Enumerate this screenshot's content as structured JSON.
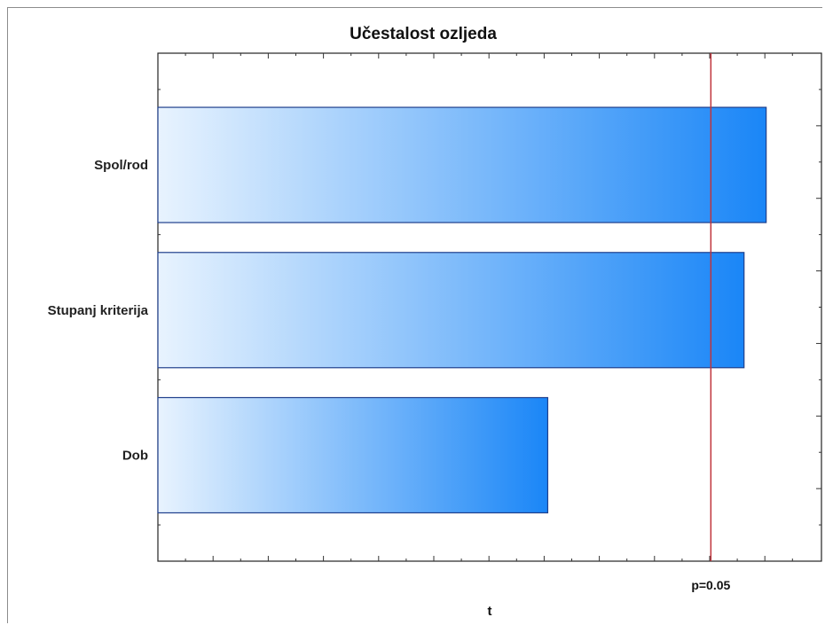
{
  "chart_data": {
    "type": "bar",
    "orientation": "horizontal",
    "title": "Učestalost ozljeda",
    "xlabel": "t",
    "ylabel": "",
    "categories": [
      "Spol/rod",
      "Stupanj kriterija",
      "Dob"
    ],
    "values": [
      2.2,
      2.12,
      1.41
    ],
    "xlim": [
      0,
      2.4
    ],
    "reference_line": {
      "value": 2.0,
      "label": "p=0.05",
      "color": "#c0343c"
    },
    "bar_gradient": {
      "start": "#e8f3fe",
      "end": "#1a86f7",
      "stroke": "#1f3f8c"
    },
    "grid": false,
    "legend": "none"
  }
}
